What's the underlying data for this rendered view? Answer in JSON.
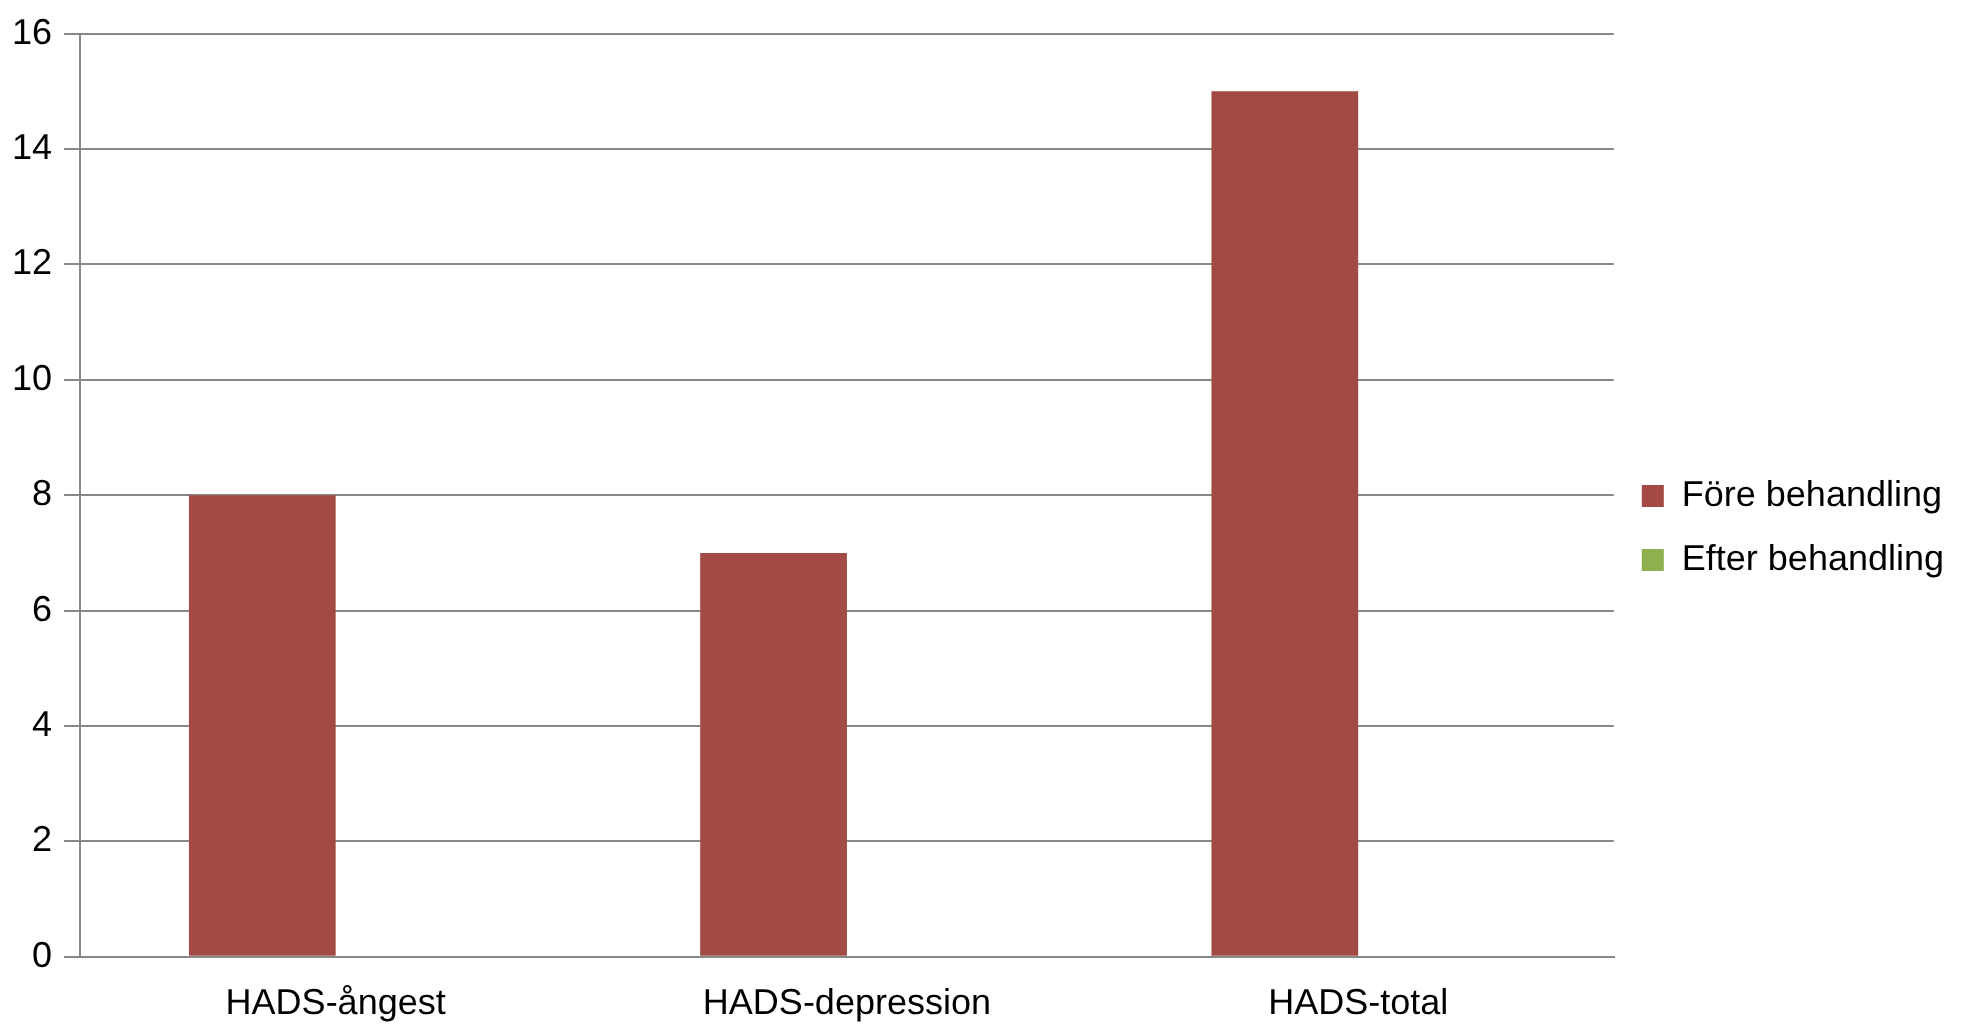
{
  "chart_data": {
    "type": "bar",
    "categories": [
      "HADS-ångest",
      "HADS-depression",
      "HADS-total"
    ],
    "series": [
      {
        "name": "Före behandling",
        "color": "#a44a45",
        "values": [
          8,
          7,
          15
        ]
      },
      {
        "name": "Efter behandling",
        "color": "#8fb04e",
        "values": [
          null,
          null,
          null
        ]
      }
    ],
    "ylim": [
      0,
      16
    ],
    "yticks": [
      0,
      2,
      4,
      6,
      8,
      10,
      12,
      14,
      16
    ],
    "grid": "y",
    "legend": "right"
  }
}
